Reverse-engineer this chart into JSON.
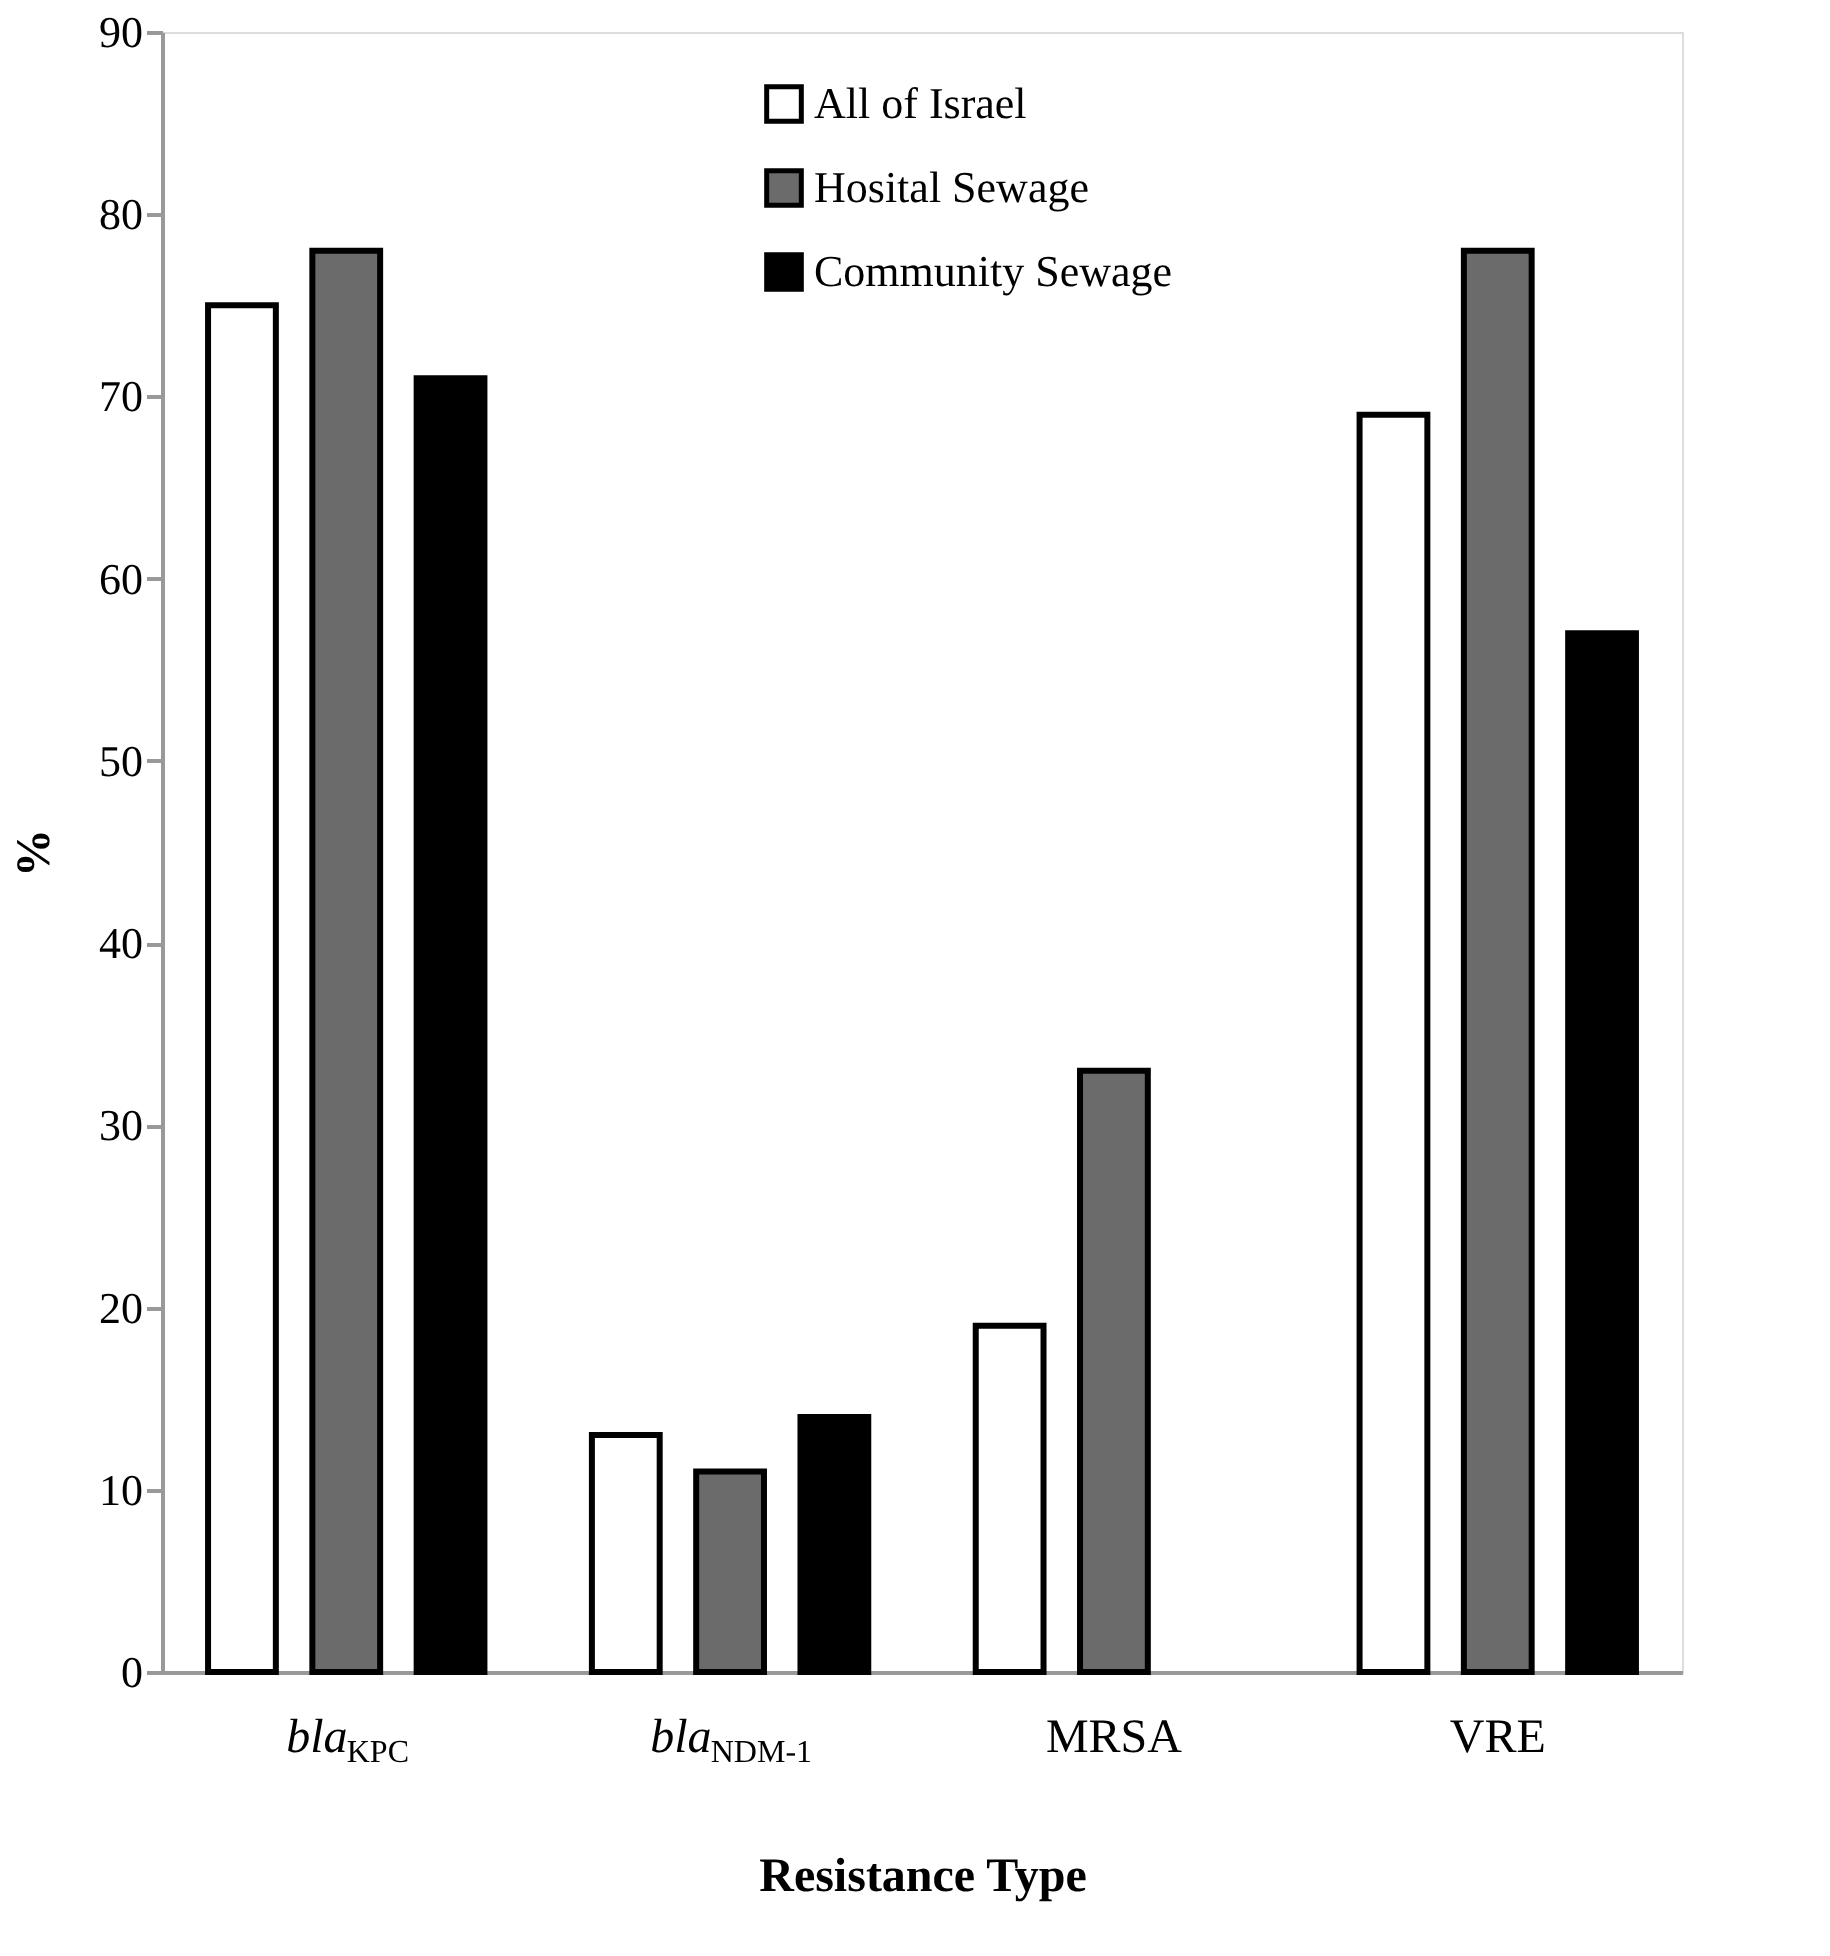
{
  "chart_data": {
    "type": "bar",
    "xlabel": "Resistance Type",
    "ylabel": "%",
    "categories": [
      "bla$_{KPC}$",
      "bla$_{NDM-1}$",
      "MRSA",
      "VRE"
    ],
    "series": [
      {
        "name": "All of Israel",
        "color": "#ffffff",
        "values": [
          75,
          13,
          19,
          69
        ]
      },
      {
        "name": "Hosital Sewage",
        "color": "#6b6b6b",
        "values": [
          78,
          11,
          33,
          78
        ]
      },
      {
        "name": "Community Sewage",
        "color": "#000000",
        "values": [
          71,
          14,
          null,
          57
        ]
      }
    ],
    "ylim": [
      0,
      90
    ],
    "yticks": [
      0,
      10,
      20,
      30,
      40,
      50,
      60,
      70,
      80,
      90
    ],
    "grid": false,
    "legend": "top"
  }
}
